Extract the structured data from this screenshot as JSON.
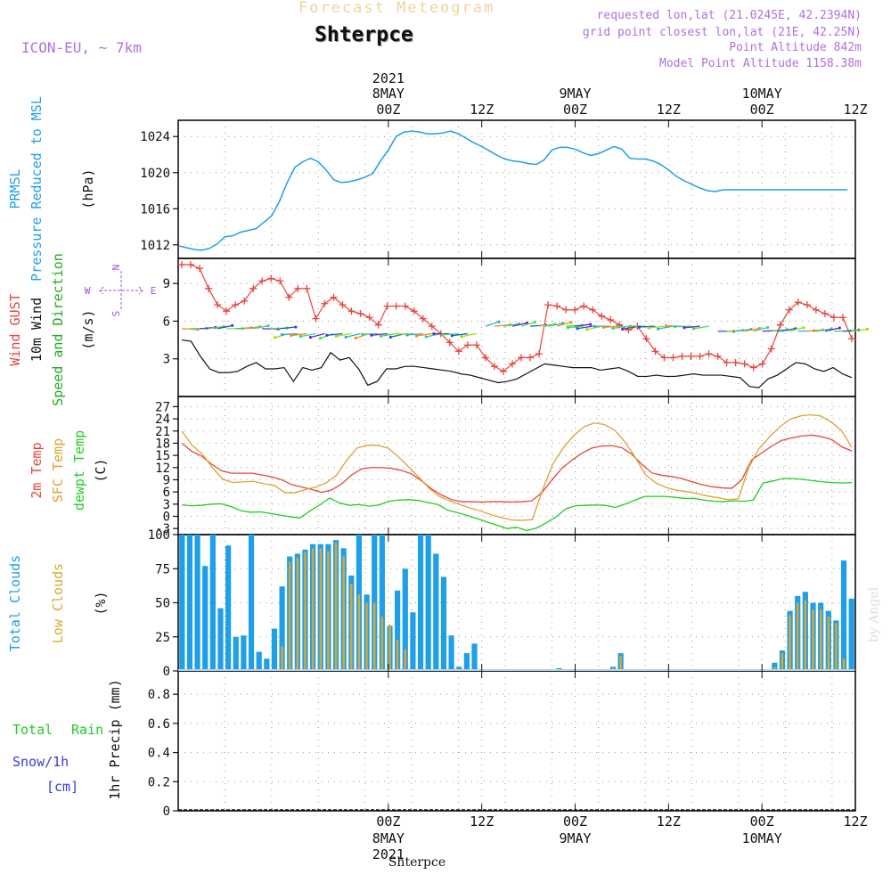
{
  "header": {
    "product": "Forecast Meteogram",
    "station": "Shterpce",
    "model": "ICON-EU, ~ 7km",
    "requested": "requested lon,lat (21.0245E, 42.2394N)",
    "grid": "grid point closest lon,lat (21E, 42.25N)",
    "point_alt": "Point Altitude 842m",
    "model_alt": "Model Point Altitude 1158.38m",
    "watermark": "by Angel",
    "footer": "Shterpce"
  },
  "colors": {
    "pressure": "#1f9fe8",
    "gust": "#e8453c",
    "wind": "#111111",
    "temp2m": "#e8453c",
    "sfc": "#e0a030",
    "dewpt": "#22cc22",
    "total_cloud": "#1f9fe8",
    "low_cloud": "#d9a830",
    "purple": "#a050e0",
    "snow": "#3a3ae0",
    "grid": "#999999"
  },
  "chart_data": [
    {
      "type": "line",
      "panel": "pressure",
      "ylabel": [
        "PRMSL",
        "Pressure Reduced to MSL"
      ],
      "unit": "(hPa)",
      "ylim": [
        1010.5,
        1025.8
      ],
      "yticks": [
        1012,
        1016,
        1020,
        1024
      ],
      "x_hours_start": -27,
      "x_hours_end": 60,
      "series": [
        {
          "name": "PRMSL",
          "color": "#1f9fe8",
          "x": [
            -27,
            -26,
            -25,
            -24,
            -23,
            -22,
            -21,
            -20,
            -19,
            -18,
            -17,
            -16,
            -15,
            -14,
            -13,
            -12,
            -11,
            -10,
            -9,
            -8,
            -7,
            -6,
            -5,
            -4,
            -3,
            -2,
            -1,
            0,
            1,
            2,
            3,
            4,
            5,
            6,
            7,
            8,
            9,
            10,
            11,
            12,
            13,
            14,
            15,
            16,
            17,
            18,
            19,
            20,
            21,
            22,
            23,
            24,
            25,
            26,
            27,
            28,
            29,
            30,
            31,
            32,
            33,
            34,
            35,
            36,
            37,
            38,
            39,
            40,
            41,
            42,
            43,
            44,
            45,
            46,
            47,
            48,
            49,
            50,
            51,
            52,
            53,
            54,
            55,
            56,
            57,
            58,
            59,
            60
          ],
          "values": [
            1011.9,
            1011.7,
            1011.5,
            1011.4,
            1011.6,
            1012.1,
            1012.9,
            1013.0,
            1013.4,
            1013.6,
            1013.8,
            1014.5,
            1015.2,
            1016.8,
            1018.9,
            1020.6,
            1021.2,
            1021.6,
            1021.2,
            1020.3,
            1019.2,
            1018.9,
            1019.0,
            1019.2,
            1019.5,
            1019.9,
            1021.3,
            1022.5,
            1024.0,
            1024.5,
            1024.6,
            1024.5,
            1024.3,
            1024.3,
            1024.4,
            1024.6,
            1024.3,
            1023.8,
            1023.3,
            1022.9,
            1022.4,
            1021.9,
            1021.5,
            1021.3,
            1021.2,
            1021.0,
            1020.9,
            1021.4,
            1022.5,
            1022.8,
            1022.8,
            1022.6,
            1022.2,
            1021.9,
            1022.1,
            1022.5,
            1022.9,
            1022.6,
            1021.6,
            1021.5,
            1021.5,
            1021.3,
            1020.9,
            1020.3,
            1019.6,
            1019.1,
            1018.7,
            1018.3,
            1018.0,
            1017.9,
            1018.1,
            1018.1,
            1018.1,
            1018.1,
            1018.1,
            1018.1,
            1018.1,
            1018.1,
            1018.1,
            1018.1,
            1018.1,
            1018.1,
            1018.1,
            1018.1,
            1018.1,
            1018.1,
            1018.1,
            1018.1
          ]
        }
      ]
    },
    {
      "type": "line",
      "panel": "wind",
      "ylabel": [
        "Wind GUST",
        "10m Wind",
        "Speed and Direction"
      ],
      "unit": "(m/s)",
      "compass": [
        "N",
        "S",
        "W",
        "E"
      ],
      "ylim": [
        0,
        11
      ],
      "yticks": [
        3,
        6,
        9
      ],
      "series": [
        {
          "name": "Wind GUST",
          "color": "#e8453c",
          "marker": "+",
          "values": [
            10.5,
            10.5,
            10.2,
            8.6,
            7.3,
            6.8,
            7.3,
            7.6,
            8.6,
            9.2,
            9.4,
            9.2,
            7.9,
            8.6,
            8.6,
            6.2,
            7.4,
            7.9,
            7.3,
            6.8,
            6.6,
            6.3,
            5.7,
            7.2,
            7.2,
            7.2,
            6.8,
            6.2,
            5.6,
            5.0,
            4.3,
            3.6,
            4.1,
            4.1,
            3.1,
            2.4,
            2.0,
            2.6,
            3.1,
            3.1,
            3.4,
            7.3,
            7.2,
            6.9,
            6.9,
            7.2,
            6.9,
            6.4,
            6.1,
            5.7,
            5.3,
            5.6,
            4.6,
            3.6,
            3.1,
            3.1,
            3.2,
            3.2,
            3.2,
            3.4,
            3.2,
            2.7,
            2.7,
            2.6,
            2.3,
            2.6,
            3.8,
            5.7,
            6.9,
            7.5,
            7.3,
            6.9,
            6.6,
            6.3,
            6.3,
            4.6
          ]
        },
        {
          "name": "10m Wind",
          "color": "#111111",
          "values": [
            4.5,
            4.4,
            3.2,
            2.2,
            1.9,
            1.9,
            2.0,
            2.4,
            2.7,
            2.2,
            2.2,
            2.3,
            1.2,
            2.3,
            2.1,
            2.3,
            3.5,
            2.9,
            3.1,
            2.2,
            0.9,
            1.2,
            2.2,
            2.2,
            2.4,
            2.4,
            2.3,
            2.2,
            2.1,
            2.0,
            1.8,
            1.7,
            1.5,
            1.3,
            1.1,
            1.2,
            1.4,
            1.8,
            2.2,
            2.6,
            2.5,
            2.4,
            2.3,
            2.3,
            2.3,
            2.1,
            2.2,
            2.3,
            2.0,
            1.6,
            1.6,
            1.7,
            1.6,
            1.6,
            1.7,
            1.8,
            1.7,
            1.7,
            1.7,
            1.6,
            1.5,
            0.8,
            0.7,
            1.4,
            1.7,
            2.2,
            2.7,
            2.6,
            2.2,
            2.0,
            2.3,
            1.8,
            1.5
          ]
        }
      ]
    },
    {
      "type": "line",
      "panel": "temperature",
      "ylabel": [
        "2m Temp",
        "SFC Temp",
        "dewpt Temp"
      ],
      "unit": "(C)",
      "ylim": [
        -4.5,
        29.5
      ],
      "yticks": [
        -3,
        0,
        3,
        6,
        9,
        12,
        15,
        18,
        21,
        24,
        27
      ],
      "series": [
        {
          "name": "2m Temp",
          "color": "#e8453c",
          "values": [
            18.0,
            16.0,
            14.8,
            12.8,
            11.2,
            10.6,
            10.6,
            10.6,
            10.2,
            9.7,
            9.0,
            7.8,
            7.2,
            6.6,
            5.9,
            6.5,
            8.0,
            10.2,
            11.7,
            12.0,
            12.0,
            11.8,
            11.3,
            10.4,
            8.7,
            6.7,
            5.2,
            4.1,
            3.6,
            3.6,
            3.5,
            3.6,
            3.6,
            3.5,
            3.6,
            3.8,
            5.8,
            8.9,
            11.8,
            13.8,
            15.5,
            16.8,
            17.3,
            17.4,
            16.9,
            15.3,
            12.8,
            10.7,
            10.1,
            9.8,
            9.3,
            8.5,
            7.8,
            7.3,
            7.0,
            6.9,
            9.0,
            13.9,
            15.6,
            17.3,
            18.7,
            19.3,
            19.8,
            20.0,
            19.6,
            18.9,
            17.1,
            16.1
          ]
        },
        {
          "name": "SFC Temp",
          "color": "#e0a030",
          "values": [
            21.0,
            17.5,
            15.3,
            11.9,
            9.1,
            8.3,
            8.5,
            8.6,
            8.0,
            7.6,
            5.8,
            5.8,
            6.6,
            7.2,
            8.2,
            10.1,
            13.8,
            16.8,
            17.5,
            17.5,
            16.8,
            14.7,
            12.2,
            9.6,
            6.9,
            4.9,
            3.8,
            2.9,
            2.0,
            1.3,
            0.4,
            -0.3,
            -0.9,
            -1.0,
            -0.8,
            6.5,
            12.9,
            16.8,
            19.8,
            22.0,
            23.0,
            22.6,
            21.2,
            18.3,
            14.5,
            10.2,
            8.2,
            7.1,
            6.4,
            6.1,
            5.6,
            5.0,
            4.6,
            4.1,
            4.3,
            12.0,
            16.7,
            19.5,
            22.0,
            23.9,
            24.7,
            25.0,
            24.7,
            23.2,
            21.1,
            17.0
          ]
        },
        {
          "name": "dewpt Temp",
          "color": "#22cc22",
          "values": [
            2.8,
            2.6,
            2.7,
            3.0,
            3.1,
            2.4,
            1.4,
            1.0,
            1.1,
            0.7,
            0.3,
            -0.1,
            -0.4,
            1.3,
            2.8,
            4.5,
            3.3,
            2.7,
            2.9,
            2.5,
            2.8,
            3.7,
            4.0,
            4.1,
            3.9,
            3.4,
            2.9,
            1.5,
            0.9,
            0.2,
            -0.6,
            -1.4,
            -2.2,
            -3.0,
            -2.7,
            -3.5,
            -2.9,
            -1.6,
            -0.1,
            1.9,
            2.6,
            2.7,
            2.8,
            2.7,
            2.2,
            3.0,
            4.0,
            4.9,
            4.9,
            4.9,
            4.7,
            4.4,
            4.4,
            4.0,
            3.7,
            3.6,
            3.8,
            3.7,
            4.0,
            8.2,
            8.7,
            9.3,
            9.3,
            9.1,
            8.8,
            8.5,
            8.3,
            8.2,
            8.3
          ]
        }
      ]
    },
    {
      "type": "bar",
      "panel": "clouds",
      "ylabel": [
        "Total Clouds",
        "Low Clouds"
      ],
      "unit": "(%)",
      "ylim": [
        0,
        100
      ],
      "yticks": [
        0,
        25,
        50,
        75,
        100
      ],
      "series": [
        {
          "name": "Total Clouds",
          "color": "#1f9fe8",
          "values": [
            100,
            100,
            100,
            77,
            100,
            46,
            92,
            25,
            26,
            100,
            14,
            9,
            31,
            62,
            84,
            86,
            89,
            93,
            93,
            93,
            96,
            90,
            70,
            100,
            56,
            100,
            100,
            33,
            59,
            75,
            43,
            100,
            100,
            86,
            69,
            26,
            3,
            13,
            20,
            0,
            0,
            0,
            0,
            0,
            0,
            0,
            0,
            0,
            0,
            2,
            0,
            0,
            0,
            0,
            0,
            0,
            3,
            13,
            0,
            0,
            0,
            0,
            0,
            0,
            0,
            0,
            0,
            0,
            0,
            0,
            0,
            0,
            0,
            0,
            0,
            0,
            0,
            6,
            15,
            44,
            55,
            58,
            50,
            50,
            44,
            37,
            81,
            53
          ]
        },
        {
          "name": "Low Clouds",
          "color": "#d9a830",
          "values": [
            0,
            0,
            0,
            0,
            0,
            0,
            0,
            0,
            0,
            0,
            0,
            0,
            0,
            18,
            80,
            83,
            87,
            90,
            90,
            88,
            94,
            84,
            64,
            56,
            50,
            50,
            40,
            34,
            23,
            16,
            0,
            0,
            0,
            0,
            0,
            0,
            0,
            0,
            0,
            0,
            0,
            0,
            0,
            0,
            0,
            0,
            0,
            0,
            0,
            1,
            0,
            0,
            0,
            0,
            0,
            0,
            2,
            11,
            0,
            0,
            0,
            0,
            0,
            0,
            0,
            0,
            0,
            0,
            0,
            0,
            0,
            0,
            0,
            0,
            0,
            0,
            0,
            3,
            13,
            41,
            50,
            52,
            45,
            45,
            40,
            35,
            9,
            0
          ]
        }
      ]
    },
    {
      "type": "bar",
      "panel": "precip",
      "ylabel": [
        "Total",
        "Rain",
        "Snow/1h",
        "[cm]"
      ],
      "ylabel2": "1hr Precip (mm)",
      "ylim": [
        0,
        0.96
      ],
      "yticks": [
        0,
        0.2,
        0.4,
        0.6,
        0.8
      ],
      "series": [
        {
          "name": "Total",
          "color": "#22cc22",
          "values": []
        },
        {
          "name": "Rain",
          "color": "#22cc22",
          "values": []
        },
        {
          "name": "Snow/1h",
          "color": "#3a3ae0",
          "values": []
        }
      ]
    }
  ],
  "time_axis": {
    "top": [
      {
        "hour": 0,
        "label": "00Z",
        "day": "8MAY",
        "year": "2021"
      },
      {
        "hour": 12,
        "label": "12Z",
        "day": "",
        "year": ""
      },
      {
        "hour": 24,
        "label": "00Z",
        "day": "9MAY",
        "year": ""
      },
      {
        "hour": 36,
        "label": "12Z",
        "day": "",
        "year": ""
      },
      {
        "hour": 48,
        "label": "00Z",
        "day": "10MAY",
        "year": ""
      },
      {
        "hour": 60,
        "label": "12Z",
        "day": "",
        "year": ""
      }
    ],
    "bottom": [
      {
        "hour": 0,
        "label": "00Z",
        "day": "8MAY",
        "year": "2021"
      },
      {
        "hour": 12,
        "label": "12Z",
        "day": "",
        "year": ""
      },
      {
        "hour": 24,
        "label": "00Z",
        "day": "9MAY",
        "year": ""
      },
      {
        "hour": 36,
        "label": "12Z",
        "day": "",
        "year": ""
      },
      {
        "hour": 48,
        "label": "00Z",
        "day": "10MAY",
        "year": ""
      },
      {
        "hour": 60,
        "label": "12Z",
        "day": "",
        "year": ""
      }
    ]
  }
}
